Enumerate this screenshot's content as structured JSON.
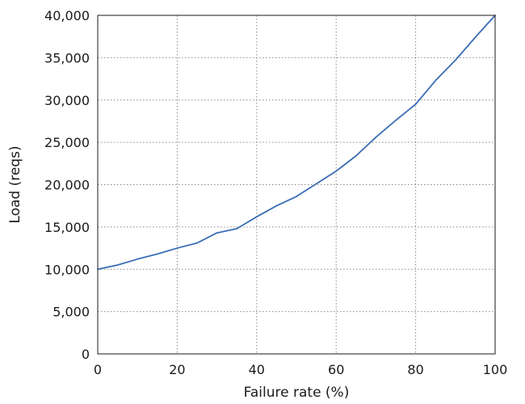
{
  "chart_data": {
    "type": "line",
    "title": "",
    "xlabel": "Failure rate (%)",
    "ylabel": "Load (reqs)",
    "xlim": [
      0,
      100
    ],
    "ylim": [
      0,
      40000
    ],
    "x_ticks": [
      0,
      20,
      40,
      60,
      80,
      100
    ],
    "x_tick_labels": [
      "0",
      "20",
      "40",
      "60",
      "80",
      "100"
    ],
    "y_ticks": [
      0,
      5000,
      10000,
      15000,
      20000,
      25000,
      30000,
      35000,
      40000
    ],
    "y_tick_labels": [
      "0",
      "5,000",
      "10,000",
      "15,000",
      "20,000",
      "25,000",
      "30,000",
      "35,000",
      "40,000"
    ],
    "grid": true,
    "legend": "none",
    "series": [
      {
        "color": "#3a6db5",
        "x": [
          0,
          5,
          10,
          15,
          20,
          25,
          30,
          35,
          40,
          45,
          50,
          55,
          60,
          65,
          70,
          75,
          80,
          85,
          90,
          95,
          100
        ],
        "y": [
          10000,
          10500,
          11200,
          11800,
          12500,
          13100,
          14300,
          14800,
          16200,
          17500,
          18600,
          20100,
          21600,
          23400,
          25600,
          27600,
          29500,
          32300,
          34700,
          37400,
          40000
        ]
      }
    ]
  }
}
